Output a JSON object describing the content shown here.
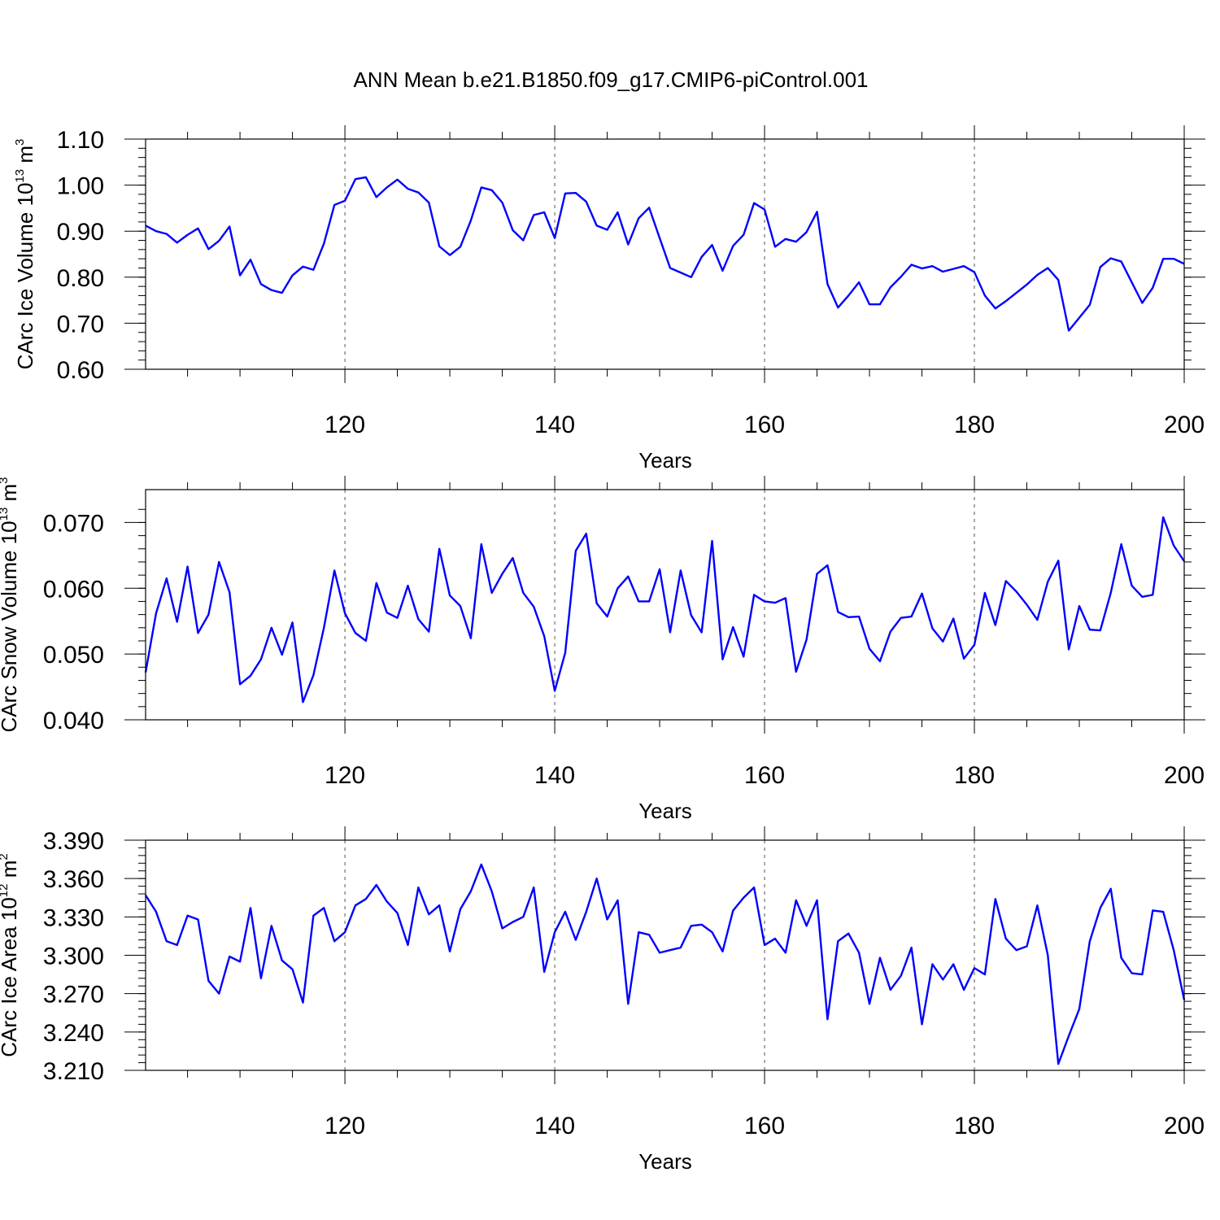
{
  "chart_data": {
    "type": "line",
    "title": "ANN Mean b.e21.B1850.f09_g17.CMIP6-piControl.001",
    "x_start": 101,
    "x_end": 200,
    "xlim": [
      101,
      200
    ],
    "x_ticks": [
      120,
      140,
      160,
      180,
      200
    ],
    "x_tick_labels": [
      "120",
      "140",
      "160",
      "180",
      "200"
    ],
    "panels": [
      {
        "name": "ice-volume",
        "xlabel": "Years",
        "ylabel_main": "CArc Ice Volume 10",
        "ylabel_exp": "13",
        "ylabel_unit": " m",
        "ylabel_unit_exp": "3",
        "ylim": [
          0.6,
          1.1
        ],
        "y_ticks": [
          0.6,
          0.7,
          0.8,
          0.9,
          1.0,
          1.1
        ],
        "y_tick_labels": [
          "0.60",
          "0.70",
          "0.80",
          "0.90",
          "1.00",
          "1.10"
        ],
        "minor_step": 0.02,
        "series": [
          {
            "name": "CArc Ice Volume",
            "color": "#0000ff",
            "values": [
              0.912,
              0.9,
              0.894,
              0.875,
              0.892,
              0.906,
              0.861,
              0.879,
              0.91,
              0.804,
              0.838,
              0.785,
              0.772,
              0.766,
              0.804,
              0.823,
              0.816,
              0.873,
              0.957,
              0.966,
              1.013,
              1.017,
              0.974,
              0.995,
              1.012,
              0.992,
              0.984,
              0.962,
              0.867,
              0.848,
              0.866,
              0.923,
              0.995,
              0.989,
              0.962,
              0.902,
              0.88,
              0.935,
              0.941,
              0.885,
              0.982,
              0.983,
              0.964,
              0.912,
              0.903,
              0.941,
              0.871,
              0.928,
              0.951,
              0.885,
              0.82,
              0.81,
              0.8,
              0.844,
              0.87,
              0.814,
              0.868,
              0.892,
              0.961,
              0.947,
              0.866,
              0.883,
              0.877,
              0.898,
              0.942,
              0.785,
              0.734,
              0.76,
              0.789,
              0.741,
              0.741,
              0.778,
              0.801,
              0.827,
              0.819,
              0.824,
              0.812,
              0.818,
              0.824,
              0.811,
              0.76,
              0.732,
              0.748,
              0.766,
              0.784,
              0.805,
              0.82,
              0.794,
              0.684,
              0.712,
              0.74,
              0.822,
              0.841,
              0.834,
              0.789,
              0.744,
              0.777,
              0.84,
              0.84,
              0.829
            ]
          }
        ]
      },
      {
        "name": "snow-volume",
        "xlabel": "Years",
        "ylabel_main": "CArc Snow Volume 10",
        "ylabel_exp": "13",
        "ylabel_unit": " m",
        "ylabel_unit_exp": "3",
        "ylim": [
          0.04,
          0.075
        ],
        "y_ticks": [
          0.04,
          0.05,
          0.06,
          0.07
        ],
        "y_tick_labels": [
          "0.040",
          "0.050",
          "0.060",
          "0.070"
        ],
        "minor_step": 0.002,
        "series": [
          {
            "name": "CArc Snow Volume",
            "color": "#0000ff",
            "values": [
              0.0472,
              0.0562,
              0.0615,
              0.0549,
              0.0633,
              0.0532,
              0.056,
              0.064,
              0.0594,
              0.0454,
              0.0467,
              0.0492,
              0.054,
              0.0499,
              0.0548,
              0.0427,
              0.0468,
              0.054,
              0.0627,
              0.0562,
              0.0532,
              0.052,
              0.0608,
              0.0563,
              0.0555,
              0.0604,
              0.0553,
              0.0534,
              0.066,
              0.0589,
              0.0573,
              0.0524,
              0.0667,
              0.0593,
              0.0622,
              0.0646,
              0.0593,
              0.0572,
              0.0527,
              0.0444,
              0.0502,
              0.0657,
              0.0683,
              0.0577,
              0.0557,
              0.06,
              0.0618,
              0.058,
              0.058,
              0.0629,
              0.0533,
              0.0627,
              0.0559,
              0.0533,
              0.0672,
              0.0492,
              0.0541,
              0.0496,
              0.059,
              0.058,
              0.0578,
              0.0585,
              0.0473,
              0.0522,
              0.0622,
              0.0635,
              0.0564,
              0.0556,
              0.0557,
              0.0508,
              0.0489,
              0.0534,
              0.0555,
              0.0557,
              0.0592,
              0.0539,
              0.0519,
              0.0554,
              0.0493,
              0.0514,
              0.0593,
              0.0544,
              0.0611,
              0.0595,
              0.0575,
              0.0552,
              0.061,
              0.0642,
              0.0507,
              0.0573,
              0.0537,
              0.0536,
              0.0593,
              0.0667,
              0.0604,
              0.0587,
              0.059,
              0.0708,
              0.0665,
              0.0641
            ]
          }
        ]
      },
      {
        "name": "ice-area",
        "xlabel": "Years",
        "ylabel_main": "CArc Ice Area 10",
        "ylabel_exp": "12",
        "ylabel_unit": " m",
        "ylabel_unit_exp": "2",
        "ylim": [
          3.21,
          3.39
        ],
        "y_ticks": [
          3.21,
          3.24,
          3.27,
          3.3,
          3.33,
          3.36,
          3.39
        ],
        "y_tick_labels": [
          "3.210",
          "3.240",
          "3.270",
          "3.300",
          "3.330",
          "3.360",
          "3.390"
        ],
        "minor_step": 0.006,
        "series": [
          {
            "name": "CArc Ice Area",
            "color": "#0000ff",
            "values": [
              3.347,
              3.334,
              3.311,
              3.308,
              3.331,
              3.328,
              3.28,
              3.27,
              3.299,
              3.295,
              3.337,
              3.282,
              3.323,
              3.296,
              3.289,
              3.263,
              3.331,
              3.337,
              3.311,
              3.318,
              3.339,
              3.344,
              3.355,
              3.342,
              3.333,
              3.308,
              3.353,
              3.332,
              3.339,
              3.303,
              3.336,
              3.35,
              3.371,
              3.35,
              3.321,
              3.326,
              3.33,
              3.353,
              3.287,
              3.318,
              3.334,
              3.312,
              3.334,
              3.36,
              3.328,
              3.343,
              3.262,
              3.318,
              3.316,
              3.302,
              3.304,
              3.306,
              3.323,
              3.324,
              3.318,
              3.303,
              3.335,
              3.345,
              3.353,
              3.308,
              3.313,
              3.302,
              3.343,
              3.323,
              3.343,
              3.25,
              3.311,
              3.317,
              3.302,
              3.262,
              3.298,
              3.273,
              3.284,
              3.306,
              3.246,
              3.293,
              3.281,
              3.293,
              3.273,
              3.29,
              3.285,
              3.344,
              3.313,
              3.304,
              3.307,
              3.339,
              3.3,
              3.215,
              3.237,
              3.258,
              3.311,
              3.337,
              3.352,
              3.298,
              3.286,
              3.285,
              3.335,
              3.334,
              3.304,
              3.265
            ]
          }
        ]
      }
    ]
  }
}
